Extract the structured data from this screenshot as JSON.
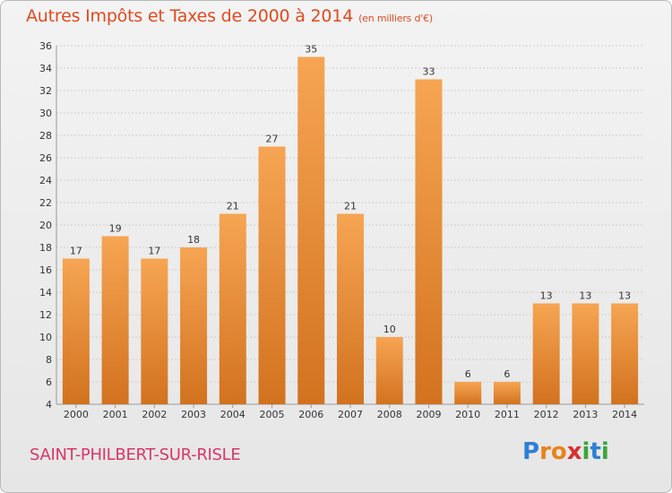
{
  "header": {
    "title": "Autres Impôts et Taxes de 2000 à 2014",
    "subtitle": "(en milliers d'€)"
  },
  "footer": {
    "city": "SAINT-PHILBERT-SUR-RISLE",
    "logo": "Proxiti"
  },
  "logo_letters": [
    {
      "char": "P",
      "color": "#2e7fd6"
    },
    {
      "char": "r",
      "color": "#e8831a"
    },
    {
      "char": "o",
      "color": "#e8831a"
    },
    {
      "char": "x",
      "color": "#d92f2f"
    },
    {
      "char": "i",
      "color": "#3aa63a"
    },
    {
      "char": "t",
      "color": "#2e7fd6"
    },
    {
      "char": "i",
      "color": "#3aa63a"
    }
  ],
  "colors": {
    "bar_light": "#f6a553",
    "bar_dark": "#d2721f",
    "grid": "#cfcfcf",
    "axis_text": "#333333"
  },
  "chart_data": {
    "type": "bar",
    "title": "Autres Impôts et Taxes de 2000 à 2014",
    "subtitle": "(en milliers d'€)",
    "categories": [
      "2000",
      "2001",
      "2002",
      "2003",
      "2004",
      "2005",
      "2006",
      "2007",
      "2008",
      "2009",
      "2010",
      "2011",
      "2012",
      "2013",
      "2014"
    ],
    "values": [
      17,
      19,
      17,
      18,
      21,
      27,
      35,
      21,
      10,
      33,
      6,
      6,
      13,
      13,
      13
    ],
    "ylim": [
      4,
      36
    ],
    "yticks": [
      4,
      6,
      8,
      10,
      12,
      14,
      16,
      18,
      20,
      22,
      24,
      26,
      28,
      30,
      32,
      34,
      36
    ],
    "grid": true,
    "data_labels": true
  }
}
